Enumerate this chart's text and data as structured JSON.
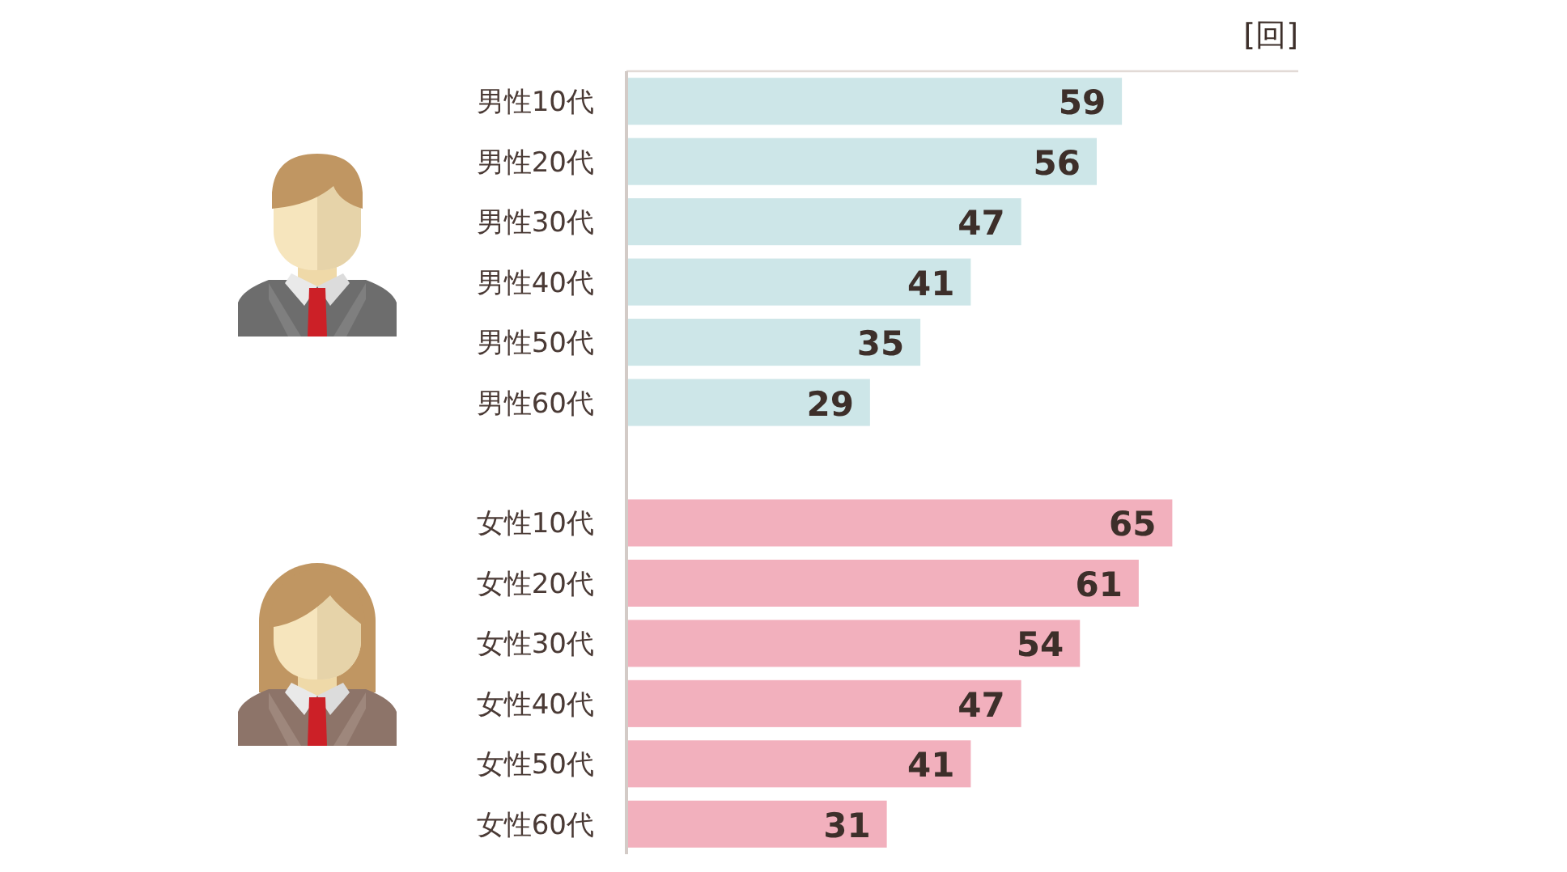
{
  "chart_data": {
    "type": "bar",
    "orientation": "horizontal",
    "categories": [
      "男性10代",
      "男性20代",
      "男性30代",
      "男性40代",
      "男性50代",
      "男性60代",
      null,
      "女性10代",
      "女性20代",
      "女性30代",
      "女性40代",
      "女性50代",
      "女性60代"
    ],
    "values": [
      59,
      56,
      47,
      41,
      35,
      29,
      null,
      65,
      61,
      54,
      47,
      41,
      31
    ],
    "colors": [
      "#cde6e8",
      "#cde6e8",
      "#cde6e8",
      "#cde6e8",
      "#cde6e8",
      "#cde6e8",
      null,
      "#f2b0bd",
      "#f2b0bd",
      "#f2b0bd",
      "#f2b0bd",
      "#f2b0bd",
      "#f2b0bd"
    ],
    "xlim": [
      0,
      80
    ],
    "data_labels": true,
    "tick_labels": "y",
    "annotations": [
      "[回]"
    ]
  }
}
